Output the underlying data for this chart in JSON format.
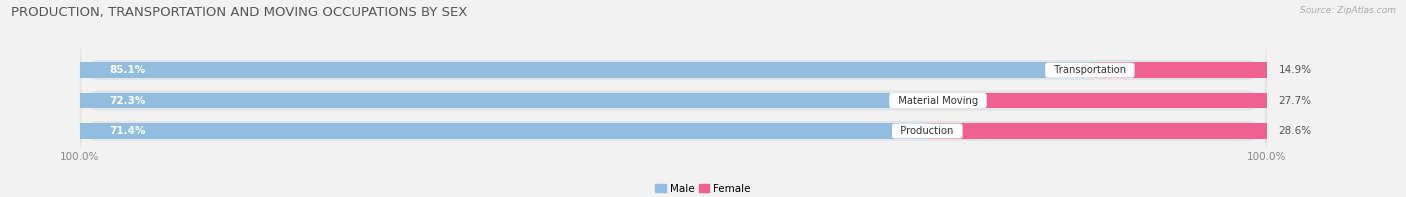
{
  "title": "PRODUCTION, TRANSPORTATION AND MOVING OCCUPATIONS BY SEX",
  "source": "Source: ZipAtlas.com",
  "categories": [
    "Transportation",
    "Material Moving",
    "Production"
  ],
  "male_values": [
    85.1,
    72.3,
    71.4
  ],
  "female_values": [
    14.9,
    27.7,
    28.6
  ],
  "male_color": "#92bce0",
  "female_color": "#f06090",
  "male_label": "Male",
  "female_label": "Female",
  "bg_color": "#f2f2f2",
  "bar_bg_color": "#e2e4e8",
  "title_fontsize": 9.5,
  "label_fontsize": 7.5,
  "tick_fontsize": 7.5,
  "source_fontsize": 6.5
}
